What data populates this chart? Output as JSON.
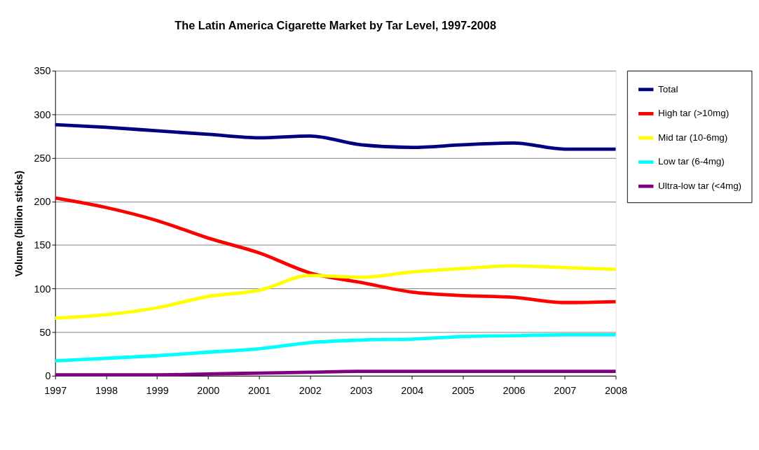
{
  "chart_data": {
    "type": "line",
    "title": "The Latin America Cigarette Market by Tar Level, 1997-2008",
    "ylabel": "Volume (billion sticks)",
    "categories": [
      "1997",
      "1998",
      "1999",
      "2000",
      "2001",
      "2002",
      "2003",
      "2004",
      "2005",
      "2006",
      "2007",
      "2008"
    ],
    "series": [
      {
        "name": "Total",
        "color": "#000080",
        "values": [
          288,
          285,
          281,
          277,
          273,
          275,
          265,
          262,
          265,
          267,
          260,
          260
        ]
      },
      {
        "name": "High tar (>10mg)",
        "color": "#ff0000",
        "values": [
          204,
          193,
          178,
          158,
          141,
          118,
          107,
          96,
          92,
          90,
          84,
          85
        ]
      },
      {
        "name": "Mid tar (10-6mg)",
        "color": "#ffff00",
        "values": [
          66,
          70,
          78,
          91,
          98,
          115,
          113,
          119,
          123,
          126,
          124,
          122
        ]
      },
      {
        "name": "Low tar (6-4mg)",
        "color": "#00ffff",
        "values": [
          17,
          20,
          23,
          27,
          31,
          38,
          41,
          42,
          45,
          46,
          47,
          47
        ]
      },
      {
        "name": "Ultra-low tar (<4mg)",
        "color": "#800080",
        "values": [
          1,
          1,
          1,
          2,
          3,
          4,
          5,
          5,
          5,
          5,
          5,
          5
        ]
      }
    ],
    "ylim": [
      0,
      350
    ],
    "yticks": [
      0,
      50,
      100,
      150,
      200,
      250,
      300,
      350
    ],
    "grid": "y",
    "legend": "right",
    "marker": "none",
    "line_style": "solid"
  }
}
